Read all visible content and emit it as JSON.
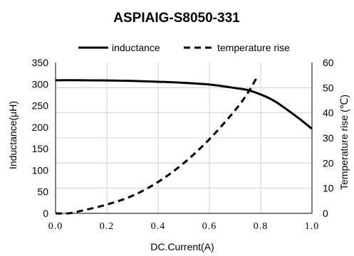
{
  "chart_data": {
    "type": "line",
    "title": "ASPIAIG-S8050-331",
    "xlabel": "DC.Current(A)",
    "ylabel": "Inductance(μH)",
    "y2label": "Temperature rise (℃)",
    "xlim": [
      0,
      1.0
    ],
    "ylim": [
      0,
      350
    ],
    "y2lim": [
      0,
      60
    ],
    "x_ticks": [
      "0.0",
      "0.2",
      "0.4",
      "0.6",
      "0.8",
      "1.0"
    ],
    "y_ticks": [
      "0",
      "50",
      "100",
      "150",
      "200",
      "250",
      "300",
      "350"
    ],
    "y2_ticks": [
      "0",
      "10",
      "20",
      "30",
      "40",
      "50",
      "60"
    ],
    "grid": true,
    "legend_position": "top",
    "series": [
      {
        "name": "inductance",
        "axis": "left",
        "style": "solid",
        "x": [
          0.0,
          0.1,
          0.2,
          0.3,
          0.4,
          0.5,
          0.6,
          0.7,
          0.75,
          0.8,
          0.85,
          0.9,
          0.95,
          1.0
        ],
        "values": [
          309,
          309,
          308.5,
          307.5,
          305.5,
          303,
          299,
          291,
          286,
          276,
          262,
          242,
          220,
          196
        ]
      },
      {
        "name": "temperature rise",
        "axis": "right",
        "style": "dashed",
        "x": [
          0.0,
          0.05,
          0.1,
          0.2,
          0.3,
          0.4,
          0.5,
          0.6,
          0.7,
          0.75,
          0.79
        ],
        "values": [
          0,
          0,
          1,
          3.5,
          7,
          12.5,
          20,
          29.5,
          41,
          48,
          55
        ]
      }
    ]
  }
}
